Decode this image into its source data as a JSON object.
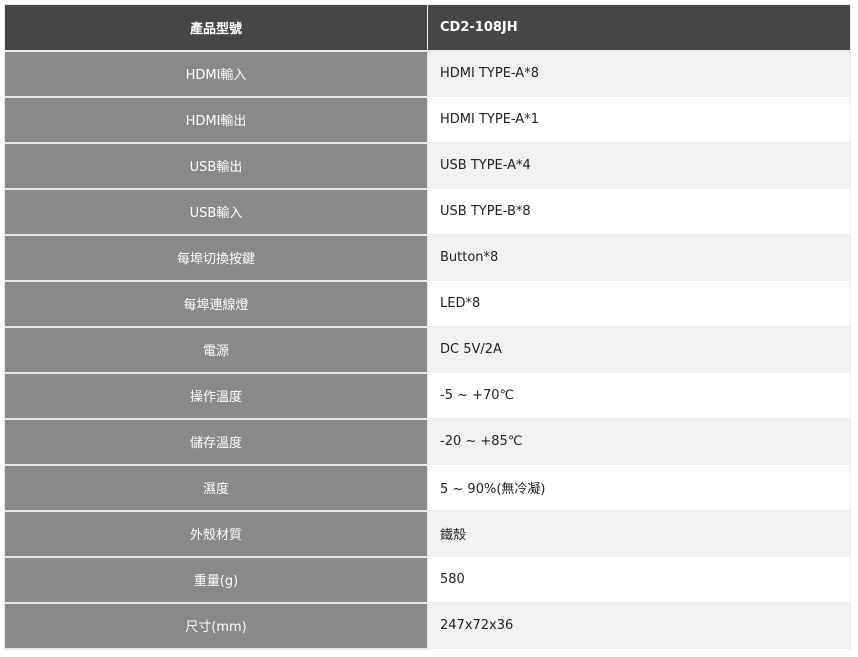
{
  "header": {
    "label": "產品型號",
    "value": "CD2-108JH"
  },
  "rows": [
    {
      "label": "HDMI輸入",
      "value": "HDMI TYPE-A*8"
    },
    {
      "label": "HDMI輸出",
      "value": "HDMI TYPE-A*1"
    },
    {
      "label": "USB輸出",
      "value": "USB TYPE-A*4"
    },
    {
      "label": "USB輸入",
      "value": "USB TYPE-B*8"
    },
    {
      "label": "每埠切換按鍵",
      "value": "Button*8"
    },
    {
      "label": "每埠連線燈",
      "value": "LED*8"
    },
    {
      "label": "電源",
      "value": "DC 5V/2A"
    },
    {
      "label": "操作溫度",
      "value": "-5 ~ +70℃"
    },
    {
      "label": "儲存溫度",
      "value": "-20 ~ +85℃"
    },
    {
      "label": "濕度",
      "value": "5 ~ 90%(無冷凝)"
    },
    {
      "label": "外殼材質",
      "value": "鐵殼"
    },
    {
      "label": "重量(g)",
      "value": "580"
    },
    {
      "label": "尺寸(mm)",
      "value": "247x72x36"
    }
  ]
}
